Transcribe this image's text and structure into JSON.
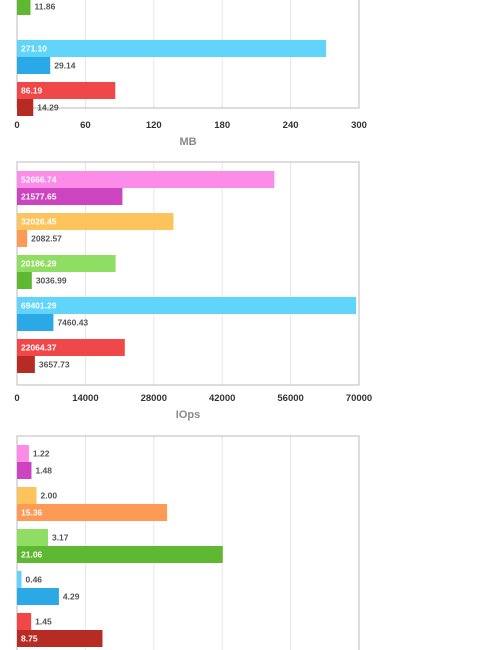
{
  "colors": {
    "gridline": "#e6e6e6",
    "frame": "#bbbbbb",
    "label_light": "#ffffff",
    "label_dark": "#555555",
    "pink": "#fb8ce8",
    "magenta": "#cc44bf",
    "yellow": "#fdc45e",
    "orange": "#fd9a55",
    "lightgreen": "#8fdd62",
    "green": "#5fb832",
    "cyan": "#60d4fb",
    "blue": "#2aa9e6",
    "red": "#f04848",
    "darkred": "#b72b25"
  },
  "chart_data": [
    {
      "type": "bar",
      "orientation": "horizontal",
      "xlabel": "MB",
      "xlim": [
        0,
        300
      ],
      "ticks": [
        "0",
        "60",
        "120",
        "180",
        "240",
        "300"
      ],
      "grid": true,
      "groups": [
        {
          "bars": [
            {
              "value": 11.86,
              "label": "11.86",
              "color": "green"
            }
          ]
        },
        {
          "bars": [
            {
              "value": 271.1,
              "label": "271.10",
              "color": "cyan"
            },
            {
              "value": 29.14,
              "label": "29.14",
              "color": "blue"
            }
          ]
        },
        {
          "bars": [
            {
              "value": 86.19,
              "label": "86.19",
              "color": "red"
            },
            {
              "value": 14.29,
              "label": "14.29",
              "color": "darkred"
            }
          ]
        }
      ]
    },
    {
      "type": "bar",
      "orientation": "horizontal",
      "xlabel": "IOps",
      "xlim": [
        0,
        70000
      ],
      "ticks": [
        "0",
        "14000",
        "28000",
        "42000",
        "56000",
        "70000"
      ],
      "grid": true,
      "groups": [
        {
          "bars": [
            {
              "value": 52666.74,
              "label": "52666.74",
              "color": "pink"
            },
            {
              "value": 21577.65,
              "label": "21577.65",
              "color": "magenta"
            }
          ]
        },
        {
          "bars": [
            {
              "value": 32026.45,
              "label": "32026.45",
              "color": "yellow"
            },
            {
              "value": 2082.57,
              "label": "2082.57",
              "color": "orange"
            }
          ]
        },
        {
          "bars": [
            {
              "value": 20186.29,
              "label": "20186.29",
              "color": "lightgreen"
            },
            {
              "value": 3036.99,
              "label": "3036.99",
              "color": "green"
            }
          ]
        },
        {
          "bars": [
            {
              "value": 69401.29,
              "label": "69401.29",
              "color": "cyan"
            },
            {
              "value": 7460.43,
              "label": "7460.43",
              "color": "blue"
            }
          ]
        },
        {
          "bars": [
            {
              "value": 22064.37,
              "label": "22064.37",
              "color": "red"
            },
            {
              "value": 3657.73,
              "label": "3657.73",
              "color": "darkred"
            }
          ]
        }
      ]
    },
    {
      "type": "bar",
      "orientation": "horizontal",
      "xlim": [
        0,
        35
      ],
      "grid": true,
      "groups": [
        {
          "bars": [
            {
              "value": 1.22,
              "label": "1.22",
              "color": "pink"
            },
            {
              "value": 1.48,
              "label": "1.48",
              "color": "magenta"
            }
          ]
        },
        {
          "bars": [
            {
              "value": 2.0,
              "label": "2.00",
              "color": "yellow"
            },
            {
              "value": 15.36,
              "label": "15.36",
              "color": "orange"
            }
          ]
        },
        {
          "bars": [
            {
              "value": 3.17,
              "label": "3.17",
              "color": "lightgreen"
            },
            {
              "value": 21.06,
              "label": "21.06",
              "color": "green"
            }
          ]
        },
        {
          "bars": [
            {
              "value": 0.46,
              "label": "0.46",
              "color": "cyan"
            },
            {
              "value": 4.29,
              "label": "4.29",
              "color": "blue"
            }
          ]
        },
        {
          "bars": [
            {
              "value": 1.45,
              "label": "1.45",
              "color": "red"
            },
            {
              "value": 8.75,
              "label": "8.75",
              "color": "darkred"
            }
          ]
        }
      ]
    }
  ]
}
